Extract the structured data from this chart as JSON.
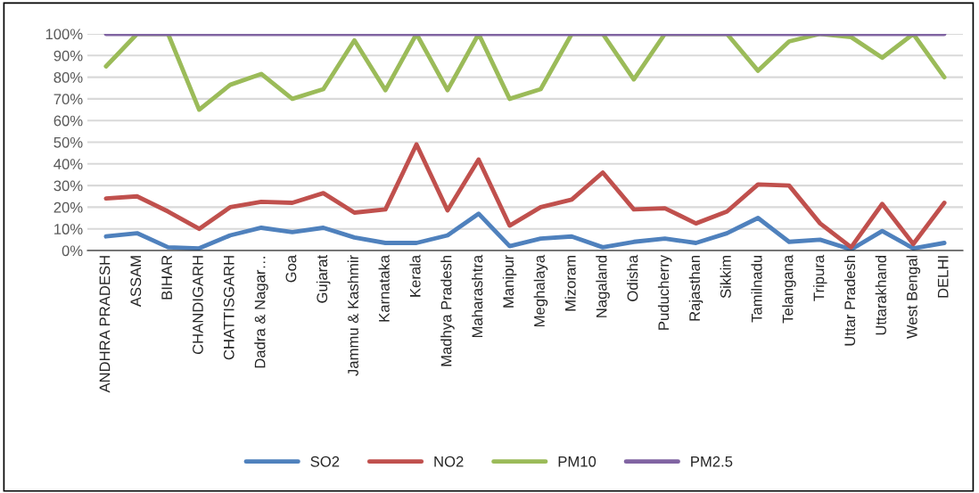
{
  "chart_data": {
    "type": "line",
    "categories": [
      "ANDHRA PRADESH",
      "ASSAM",
      "BIHAR",
      "CHANDIGARH",
      "CHATTISGARH",
      "Dadra & Nagar…",
      "Goa",
      "Gujarat",
      "Jammu & Kashmir",
      "Karnataka",
      "Kerala",
      "Madhya Pradesh",
      "Maharashtra",
      "Manipur",
      "Meghalaya",
      "Mizoram",
      "Nagaland",
      "Odisha",
      "Puducherry",
      "Rajasthan",
      "Sikkim",
      "Tamilnadu",
      "Telangana",
      "Tripura",
      "Uttar Pradesh",
      "Uttarakhand",
      "West Bengal",
      "DELHI"
    ],
    "series": [
      {
        "name": "SO2",
        "color": "#4f81bd",
        "values": [
          6.5,
          8,
          1.5,
          1,
          7,
          10.5,
          8.5,
          10.5,
          6,
          3.5,
          3.5,
          7,
          17,
          2,
          5.5,
          6.5,
          1.5,
          4,
          5.5,
          3.5,
          8,
          15,
          4,
          5,
          0.5,
          9,
          1,
          3.5
        ]
      },
      {
        "name": "NO2",
        "color": "#c0504d",
        "values": [
          24,
          25,
          18,
          10,
          20,
          22.5,
          22,
          26.5,
          17.5,
          19,
          49,
          18.5,
          42,
          11.5,
          20,
          23.5,
          36,
          19,
          19.5,
          12.5,
          18,
          30.5,
          30,
          12.5,
          1.5,
          21.5,
          3,
          22
        ]
      },
      {
        "name": "PM10",
        "color": "#9bbb59",
        "values": [
          85,
          100,
          100,
          65,
          76.5,
          81.5,
          70,
          74.5,
          97,
          74,
          100,
          74,
          100,
          70,
          74.5,
          100,
          100,
          79,
          100,
          100,
          100,
          83,
          96.5,
          100,
          98.5,
          89,
          100,
          80
        ]
      },
      {
        "name": "PM2.5",
        "color": "#8064a2",
        "values": [
          100,
          100,
          100,
          100,
          100,
          100,
          100,
          100,
          100,
          100,
          100,
          100,
          100,
          100,
          100,
          100,
          100,
          100,
          100,
          100,
          100,
          100,
          100,
          100,
          100,
          100,
          100,
          100
        ]
      }
    ],
    "ylim": [
      0,
      100
    ],
    "yticks": [
      {
        "value": 0,
        "label": "0%"
      },
      {
        "value": 10,
        "label": "10%"
      },
      {
        "value": 20,
        "label": "20%"
      },
      {
        "value": 30,
        "label": "30%"
      },
      {
        "value": 40,
        "label": "40%"
      },
      {
        "value": 50,
        "label": "50%"
      },
      {
        "value": 60,
        "label": "60%"
      },
      {
        "value": 70,
        "label": "70%"
      },
      {
        "value": 80,
        "label": "80%"
      },
      {
        "value": 90,
        "label": "90%"
      },
      {
        "value": 100,
        "label": "100%"
      }
    ],
    "grid": "y",
    "legend": "bottom",
    "marker": "none",
    "line_style": "solid"
  }
}
